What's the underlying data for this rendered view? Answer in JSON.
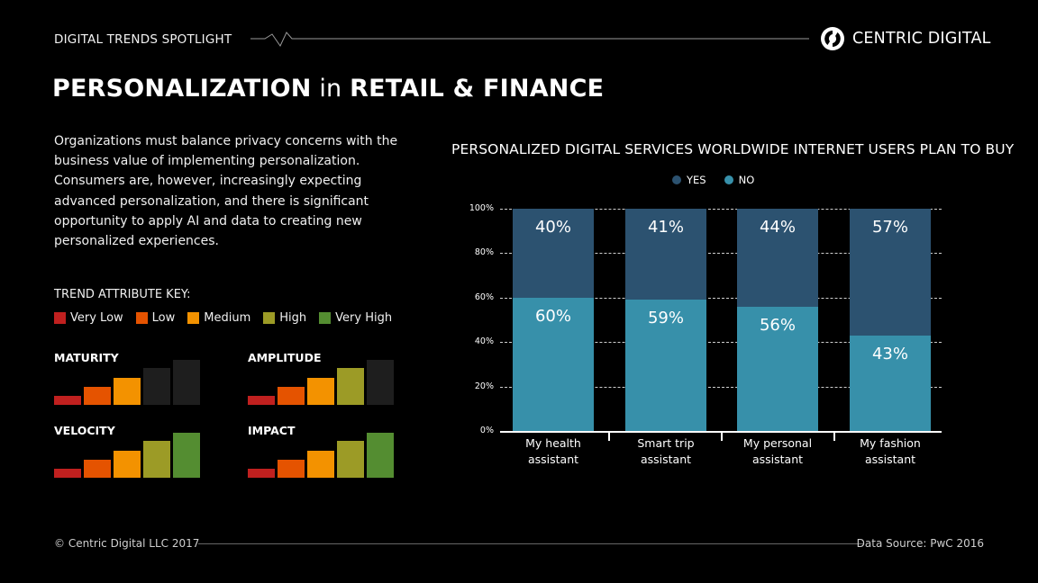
{
  "header": {
    "series_label": "DIGITAL TRENDS SPOTLIGHT",
    "brand": "CENTRIC DIGITAL",
    "title_part1": "PERSONALIZATION",
    "title_part2": " in ",
    "title_part3": "RETAIL & FINANCE"
  },
  "intro": {
    "text": "Organizations must balance privacy concerns with the business value of implementing personalization. Consumers are, however, increasingly expecting advanced personalization, and there is significant opportunity to apply AI and data to creating new personalized experiences."
  },
  "trend_key": {
    "title": "TREND ATTRIBUTE KEY:",
    "levels": [
      {
        "label": "Very Low",
        "color": "#c0201f"
      },
      {
        "label": "Low",
        "color": "#e55300"
      },
      {
        "label": "Medium",
        "color": "#f39200"
      },
      {
        "label": "High",
        "color": "#9c9b26"
      },
      {
        "label": "Very High",
        "color": "#548d31"
      }
    ],
    "inactive_color": "#1e1e1e"
  },
  "metrics": [
    {
      "name": "MATURITY",
      "level": 3
    },
    {
      "name": "AMPLITUDE",
      "level": 4
    },
    {
      "name": "VELOCITY",
      "level": 5
    },
    {
      "name": "IMPACT",
      "level": 5
    }
  ],
  "chart_data": {
    "type": "bar",
    "stacked": true,
    "title": "PERSONALIZED DIGITAL SERVICES WORLDWIDE INTERNET USERS PLAN TO BUY",
    "categories": [
      "My health assistant",
      "Smart trip assistant",
      "My personal assistant",
      "My fashion assistant"
    ],
    "category_lines": [
      [
        "My health",
        "assistant"
      ],
      [
        "Smart trip",
        "assistant"
      ],
      [
        "My personal",
        "assistant"
      ],
      [
        "My fashion",
        "assistant"
      ]
    ],
    "series": [
      {
        "name": "YES",
        "color": "#2c5270",
        "values": [
          40,
          41,
          44,
          57
        ],
        "labels": [
          "40%",
          "41%",
          "44%",
          "57%"
        ]
      },
      {
        "name": "NO",
        "color": "#3790aa",
        "values": [
          60,
          59,
          56,
          43
        ],
        "labels": [
          "60%",
          "59%",
          "56%",
          "43%"
        ]
      }
    ],
    "yticks": [
      "0%",
      "20%",
      "40%",
      "60%",
      "80%",
      "100%"
    ],
    "ylim": [
      0,
      100
    ],
    "xlabel": "",
    "ylabel": "",
    "grid": "dashed horizontal",
    "legend_position": "top-center"
  },
  "footer": {
    "copyright": "© Centric Digital LLC 2017",
    "source": "Data Source: PwC 2016"
  }
}
